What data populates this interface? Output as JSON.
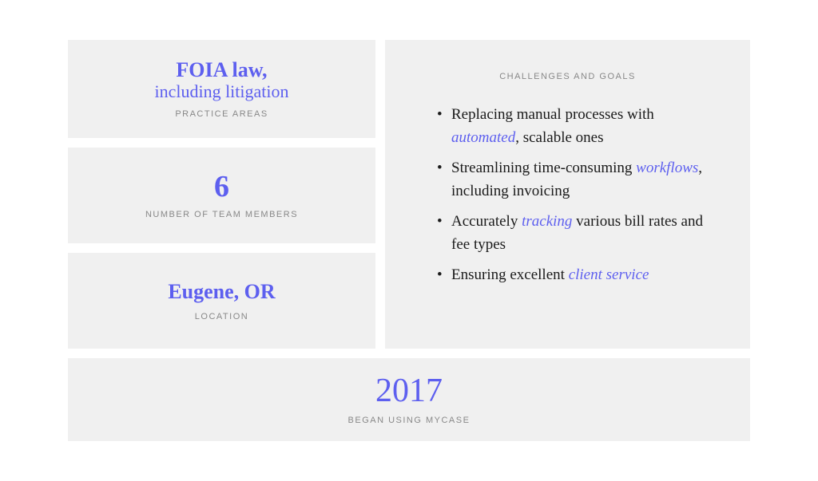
{
  "colors": {
    "accent": "#5d5fef",
    "card_bg": "#f0f0f0",
    "label_text": "#888888",
    "body_text": "#1a1a1a",
    "page_bg": "#ffffff"
  },
  "typography": {
    "body_font": "Georgia, serif",
    "label_font": "Arial, sans-serif",
    "label_fontsize": 11,
    "label_letterspacing": 1.5,
    "value_fontsize": 26,
    "number_fontsize": 38,
    "year_fontsize": 42,
    "list_fontsize": 19
  },
  "practice_areas": {
    "line1": "FOIA law,",
    "line2": "including litigation",
    "label": "PRACTICE AREAS"
  },
  "team": {
    "value": "6",
    "label": "NUMBER OF TEAM MEMBERS"
  },
  "location": {
    "value": "Eugene, OR",
    "label": "LOCATION"
  },
  "year": {
    "value": "2017",
    "label": "BEGAN USING MYCASE"
  },
  "challenges": {
    "title": "CHALLENGES AND GOALS",
    "items": [
      {
        "pre": "Replacing manual processes with ",
        "highlight": "automated",
        "post": ", scalable ones"
      },
      {
        "pre": "Streamlining time-consuming ",
        "highlight": "workflows",
        "post": ", including invoicing"
      },
      {
        "pre": "Accurately ",
        "highlight": "tracking",
        "post": " various bill rates and fee types"
      },
      {
        "pre": "Ensuring excellent ",
        "highlight": "client service",
        "post": ""
      }
    ]
  }
}
